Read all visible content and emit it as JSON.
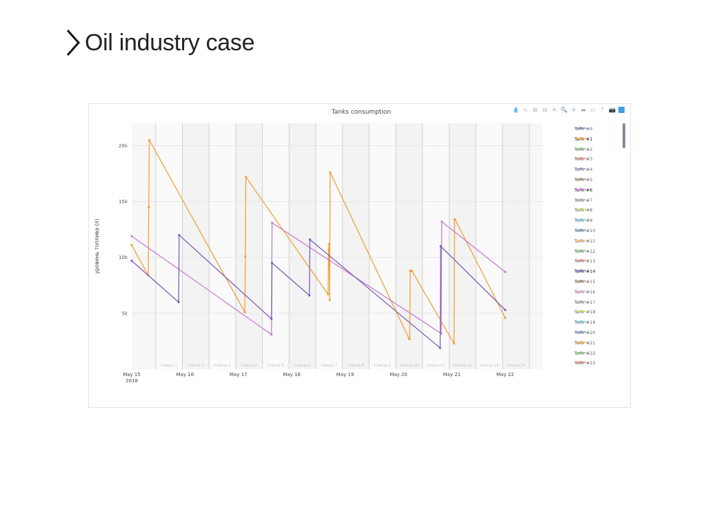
{
  "slide": {
    "title": "Oil industry case"
  },
  "modebar": {
    "icons": [
      "droplet-icon",
      "lasso-icon",
      "zoom-in-icon",
      "zoom-out-icon",
      "autoscale-icon",
      "zoom-icon",
      "pan-icon",
      "spike-lines-icon",
      "hover-closest-icon",
      "hover-compare-icon",
      "camera-icon",
      "plotly-logo-icon"
    ],
    "glyphs": [
      "💧",
      "∿",
      "⊞",
      "⊟",
      "✕",
      "🔍",
      "✛",
      "▬",
      "▭",
      "⇡",
      "📷",
      ""
    ]
  },
  "chart_data": {
    "type": "line",
    "title": "Tanks consumption",
    "ylabel": "уровень топлива (л)",
    "xlabel": "",
    "ylim": [
      0,
      22000
    ],
    "xlim": [
      0.0,
      7.7
    ],
    "grid": true,
    "legend_position": "right",
    "x_ticks": [
      {
        "x": 0,
        "label": "May 15",
        "label2": "2018"
      },
      {
        "x": 1,
        "label": "May 16"
      },
      {
        "x": 2,
        "label": "May 17"
      },
      {
        "x": 3,
        "label": "May 18"
      },
      {
        "x": 4,
        "label": "May 19"
      },
      {
        "x": 5,
        "label": "May 20"
      },
      {
        "x": 6,
        "label": "May 21"
      },
      {
        "x": 7,
        "label": "May 22"
      }
    ],
    "y_ticks": [
      {
        "y": 5000,
        "label": "5k"
      },
      {
        "y": 10000,
        "label": "10k"
      },
      {
        "y": 15000,
        "label": "15k"
      },
      {
        "y": 20000,
        "label": "20k"
      }
    ],
    "shift_bands": [
      {
        "x0": 0.45,
        "x1": 0.95,
        "label": "Смена 1"
      },
      {
        "x0": 0.95,
        "x1": 1.45,
        "label": "Смена 2"
      },
      {
        "x0": 1.45,
        "x1": 1.95,
        "label": "Смена 3"
      },
      {
        "x0": 1.95,
        "x1": 2.45,
        "label": "Смена 4"
      },
      {
        "x0": 2.45,
        "x1": 2.95,
        "label": "Смена 5"
      },
      {
        "x0": 2.95,
        "x1": 3.45,
        "label": "Смена 6"
      },
      {
        "x0": 3.45,
        "x1": 3.95,
        "label": "Смена 7"
      },
      {
        "x0": 3.95,
        "x1": 4.45,
        "label": "Смена 8"
      },
      {
        "x0": 4.45,
        "x1": 4.95,
        "label": "Смена 9"
      },
      {
        "x0": 4.95,
        "x1": 5.45,
        "label": "Смена 10"
      },
      {
        "x0": 5.45,
        "x1": 5.95,
        "label": "Смена 11"
      },
      {
        "x0": 5.95,
        "x1": 6.45,
        "label": "Смена 12"
      },
      {
        "x0": 6.45,
        "x1": 6.95,
        "label": "Смена 13"
      },
      {
        "x0": 6.95,
        "x1": 7.45,
        "label": "Смена 14"
      }
    ],
    "series": [
      {
        "name": "Tank #1",
        "color": "#f0a13a",
        "x": [
          0.0,
          0.31,
          0.32,
          0.33,
          2.12,
          2.13,
          2.14,
          3.68,
          3.69,
          3.7,
          3.71,
          3.72,
          5.2,
          5.21,
          5.22,
          5.23,
          5.24,
          5.25,
          6.04,
          6.05,
          6.06,
          7.0
        ],
        "y": [
          11100,
          8400,
          14500,
          20500,
          5100,
          10100,
          17200,
          6700,
          10700,
          11200,
          6200,
          17600,
          2700,
          2700,
          8800,
          8800,
          8800,
          8800,
          2300,
          13400,
          13400,
          4600
        ]
      },
      {
        "name": "Tank #6",
        "color": "#c77dd1",
        "x": [
          0.0,
          2.62,
          2.63,
          5.8,
          5.81,
          7.0
        ],
        "y": [
          11900,
          3100,
          13100,
          3200,
          13200,
          8700
        ]
      },
      {
        "name": "Tank #14",
        "color": "#7b5fb5",
        "x": [
          0.0,
          0.88,
          0.89,
          2.62,
          2.63,
          3.33,
          3.34,
          5.78,
          5.79,
          7.0
        ],
        "y": [
          9700,
          6000,
          12000,
          4500,
          9500,
          6600,
          11600,
          1900,
          11000,
          5300
        ]
      }
    ],
    "legend": [
      {
        "name": "Tank #0",
        "color": "#6f8fb0",
        "active": false
      },
      {
        "name": "Tank #1",
        "color": "#f0a13a",
        "active": true
      },
      {
        "name": "Tank #2",
        "color": "#7cba7a",
        "active": false
      },
      {
        "name": "Tank #3",
        "color": "#e07b7b",
        "active": false
      },
      {
        "name": "Tank #4",
        "color": "#9a8fc4",
        "active": false
      },
      {
        "name": "Tank #5",
        "color": "#a38b73",
        "active": false
      },
      {
        "name": "Tank #6",
        "color": "#c77dd1",
        "active": true
      },
      {
        "name": "Tank #7",
        "color": "#a5a5a5",
        "active": false
      },
      {
        "name": "Tank #8",
        "color": "#c7c95b",
        "active": false
      },
      {
        "name": "Tank #9",
        "color": "#5ec5d4",
        "active": false
      },
      {
        "name": "Tank #10",
        "color": "#6f8fb0",
        "active": false
      },
      {
        "name": "Tank #11",
        "color": "#f0b36a",
        "active": false
      },
      {
        "name": "Tank #12",
        "color": "#7cba7a",
        "active": false
      },
      {
        "name": "Tank #13",
        "color": "#e07b7b",
        "active": false
      },
      {
        "name": "Tank #14",
        "color": "#7b5fb5",
        "active": true
      },
      {
        "name": "Tank #15",
        "color": "#a38b73",
        "active": false
      },
      {
        "name": "Tank #16",
        "color": "#e5a5d5",
        "active": false
      },
      {
        "name": "Tank #17",
        "color": "#a5a5a5",
        "active": false
      },
      {
        "name": "Tank #18",
        "color": "#c7c95b",
        "active": false
      },
      {
        "name": "Tank #19",
        "color": "#5ec5d4",
        "active": false
      },
      {
        "name": "Tank #20",
        "color": "#6f8fb0",
        "active": false
      },
      {
        "name": "Tank #21",
        "color": "#f0a13a",
        "active": false
      },
      {
        "name": "Tank #22",
        "color": "#7cba7a",
        "active": false
      },
      {
        "name": "Tank #23",
        "color": "#e07b7b",
        "active": false
      }
    ]
  }
}
